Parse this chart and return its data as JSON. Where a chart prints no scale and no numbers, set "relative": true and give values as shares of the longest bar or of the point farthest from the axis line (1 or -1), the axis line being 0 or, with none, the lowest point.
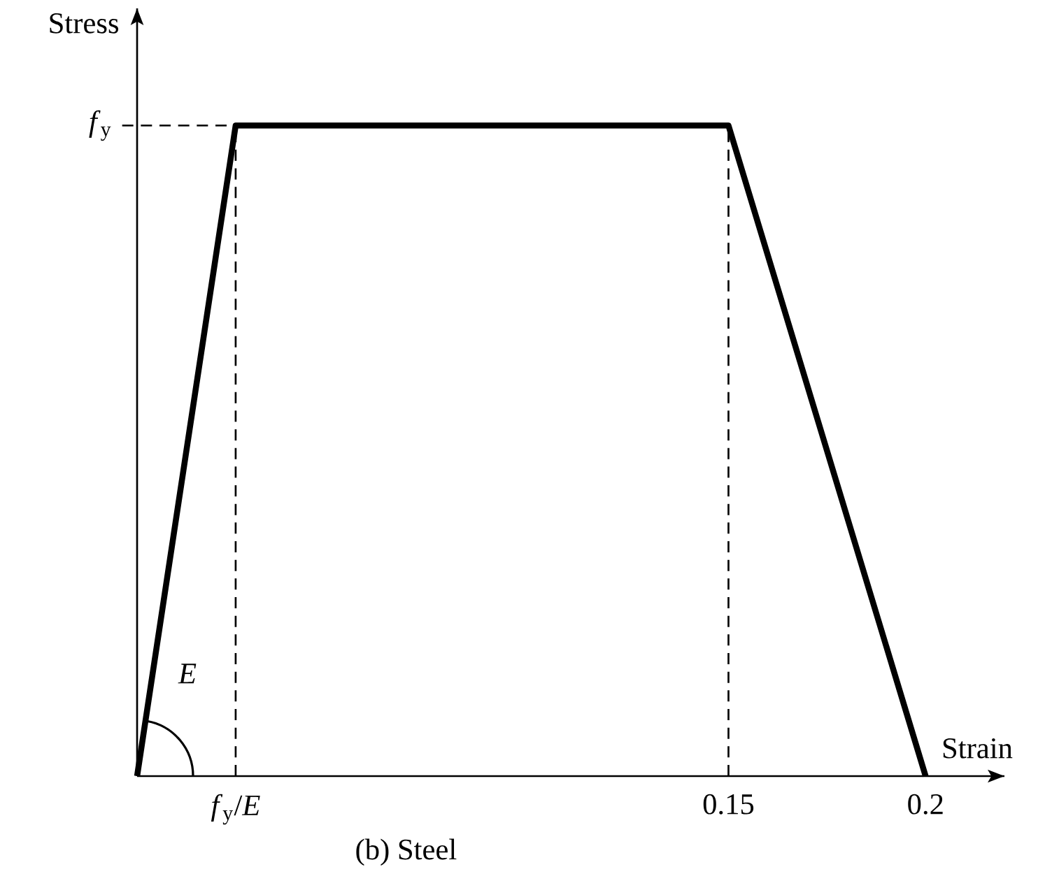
{
  "chart_data": {
    "type": "line",
    "title": "(b) Steel",
    "xlabel": "Strain",
    "ylabel": "Stress",
    "relative": true,
    "x": [
      0,
      0.025,
      0.15,
      0.2
    ],
    "series": [
      {
        "color": "#000000",
        "values": [
          0,
          1,
          1,
          0
        ]
      }
    ],
    "xlim": [
      0,
      0.22
    ],
    "xticks": [
      {
        "value": 0.025,
        "label": "*f*$_{y}$/*E*"
      },
      0.15,
      0.2
    ],
    "ref_lines": [
      {
        "axis": "y",
        "value": 1,
        "label": "*f*$_{y}$",
        "line_style": "dashed"
      },
      {
        "axis": "x",
        "value": 0.025,
        "line_style": "dashed"
      },
      {
        "axis": "x",
        "value": 0.15,
        "line_style": "dashed"
      }
    ],
    "annotations": [
      "*E*"
    ]
  }
}
